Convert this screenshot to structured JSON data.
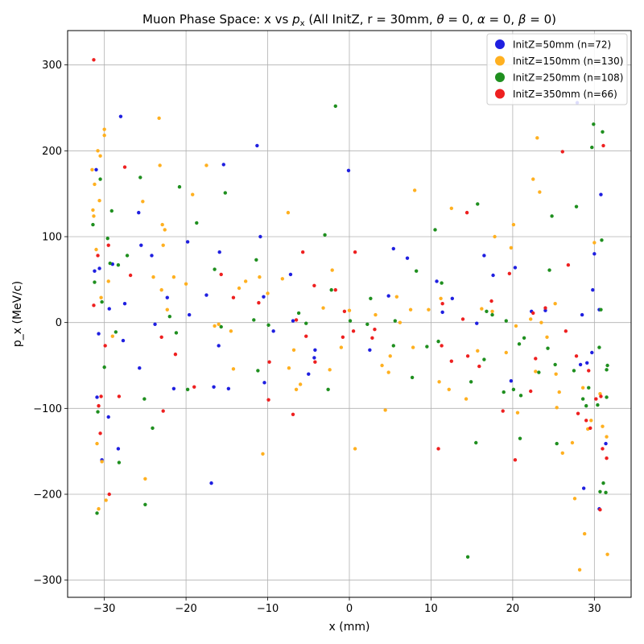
{
  "chart_data": {
    "type": "scatter",
    "title": "Muon Phase Space: x vs p_x (All InitZ, r = 30mm, θ = 0, α = 0, β = 0)",
    "xlabel": "x (mm)",
    "ylabel": "p_x (MeV/c)",
    "xlim": [
      -34.5,
      34.5
    ],
    "ylim": [
      -320,
      340
    ],
    "xticks": [
      -30,
      -20,
      -10,
      0,
      10,
      20,
      30
    ],
    "yticks": [
      -300,
      -200,
      -100,
      0,
      100,
      200,
      300
    ],
    "xtick_labels": [
      "−30",
      "−20",
      "−10",
      "0",
      "10",
      "20",
      "30"
    ],
    "ytick_labels": [
      "−300",
      "−200",
      "−100",
      "0",
      "100",
      "200",
      "300"
    ],
    "grid": true,
    "legend_position": "top-right",
    "series": [
      {
        "name": "InitZ=50mm (n=72)",
        "color": "#1f1fe0",
        "points": [
          [
            -31.2,
            60
          ],
          [
            -31.0,
            178
          ],
          [
            -30.9,
            -87
          ],
          [
            -30.7,
            -13
          ],
          [
            -30.6,
            63
          ],
          [
            -30.3,
            -160
          ],
          [
            -29.5,
            -110
          ],
          [
            -29.4,
            16
          ],
          [
            -29.0,
            68
          ],
          [
            -28.3,
            -147
          ],
          [
            -28.0,
            240
          ],
          [
            -27.7,
            -21
          ],
          [
            -27.5,
            22
          ],
          [
            -25.8,
            128
          ],
          [
            -25.7,
            -53
          ],
          [
            -25.5,
            90
          ],
          [
            -24.2,
            78
          ],
          [
            -23.8,
            -2
          ],
          [
            -22.3,
            29
          ],
          [
            -21.5,
            -77
          ],
          [
            -19.8,
            94
          ],
          [
            -19.6,
            9
          ],
          [
            -17.5,
            32
          ],
          [
            -16.9,
            -187
          ],
          [
            -16.6,
            -75
          ],
          [
            -16.0,
            -27
          ],
          [
            -15.9,
            82
          ],
          [
            -15.4,
            184
          ],
          [
            -14.8,
            -77
          ],
          [
            -11.3,
            206
          ],
          [
            -10.9,
            100
          ],
          [
            -10.5,
            30
          ],
          [
            -10.4,
            -70
          ],
          [
            -9.3,
            -10
          ],
          [
            -7.2,
            56
          ],
          [
            -6.9,
            2
          ],
          [
            -5.0,
            -60
          ],
          [
            -4.3,
            -41
          ],
          [
            -4.2,
            -32
          ],
          [
            -0.1,
            177
          ],
          [
            2.5,
            -32
          ],
          [
            4.8,
            31
          ],
          [
            5.4,
            86
          ],
          [
            7.1,
            75
          ],
          [
            10.7,
            48
          ],
          [
            11.4,
            12
          ],
          [
            12.6,
            28
          ],
          [
            15.6,
            -1
          ],
          [
            16.5,
            78
          ],
          [
            17.6,
            55
          ],
          [
            19.8,
            -68
          ],
          [
            20.3,
            64
          ],
          [
            22.3,
            13
          ],
          [
            24.0,
            14
          ],
          [
            28.3,
            -49
          ],
          [
            27.9,
            256
          ],
          [
            28.5,
            9
          ],
          [
            28.7,
            -193
          ],
          [
            29.1,
            -47
          ],
          [
            29.7,
            -35
          ],
          [
            29.8,
            38
          ],
          [
            30.0,
            80
          ],
          [
            30.6,
            15
          ],
          [
            30.8,
            149
          ],
          [
            31.4,
            -141
          ],
          [
            30.6,
            -217
          ]
        ]
      },
      {
        "name": "InitZ=150mm (n=130)",
        "color": "#ffb020",
        "points": [
          [
            -31.5,
            178
          ],
          [
            -31.4,
            131
          ],
          [
            -31.3,
            124
          ],
          [
            -31.2,
            161
          ],
          [
            -31.0,
            85
          ],
          [
            -30.9,
            -141
          ],
          [
            -30.8,
            200
          ],
          [
            -30.7,
            -217
          ],
          [
            -30.6,
            142
          ],
          [
            -30.5,
            194
          ],
          [
            -30.4,
            29
          ],
          [
            -30.3,
            -162
          ],
          [
            -30.0,
            225
          ],
          [
            -30.0,
            218
          ],
          [
            -29.8,
            -207
          ],
          [
            -29.5,
            48
          ],
          [
            -29.0,
            -16
          ],
          [
            -25.3,
            141
          ],
          [
            -25.0,
            -182
          ],
          [
            -24.0,
            53
          ],
          [
            -23.3,
            238
          ],
          [
            -23.2,
            183
          ],
          [
            -23.0,
            38
          ],
          [
            -22.9,
            114
          ],
          [
            -22.8,
            90
          ],
          [
            -22.6,
            108
          ],
          [
            -22.3,
            15
          ],
          [
            -21.5,
            53
          ],
          [
            -20.0,
            45
          ],
          [
            -19.2,
            149
          ],
          [
            -17.5,
            183
          ],
          [
            -16.5,
            -4
          ],
          [
            -16.0,
            -2
          ],
          [
            -14.5,
            -10
          ],
          [
            -14.2,
            -54
          ],
          [
            -13.5,
            40
          ],
          [
            -12.7,
            48
          ],
          [
            -11.0,
            53
          ],
          [
            -10.6,
            -153
          ],
          [
            -10.0,
            34
          ],
          [
            -8.2,
            51
          ],
          [
            -7.5,
            128
          ],
          [
            -7.4,
            -53
          ],
          [
            -6.8,
            -32
          ],
          [
            -6.5,
            -78
          ],
          [
            -6.0,
            -72
          ],
          [
            -3.2,
            17
          ],
          [
            -2.4,
            -55
          ],
          [
            -2.1,
            61
          ],
          [
            -1.0,
            -29
          ],
          [
            0.0,
            14
          ],
          [
            0.7,
            -147
          ],
          [
            3.2,
            9
          ],
          [
            4.0,
            -50
          ],
          [
            4.4,
            -102
          ],
          [
            4.8,
            -58
          ],
          [
            5.0,
            -39
          ],
          [
            5.8,
            30
          ],
          [
            6.2,
            0
          ],
          [
            7.5,
            15
          ],
          [
            7.8,
            -29
          ],
          [
            8.0,
            154
          ],
          [
            9.7,
            15
          ],
          [
            11.0,
            -69
          ],
          [
            11.2,
            28
          ],
          [
            12.2,
            -78
          ],
          [
            12.5,
            133
          ],
          [
            14.3,
            -89
          ],
          [
            15.7,
            -33
          ],
          [
            16.2,
            16
          ],
          [
            17.5,
            13
          ],
          [
            17.8,
            100
          ],
          [
            19.2,
            -35
          ],
          [
            19.8,
            87
          ],
          [
            20.1,
            114
          ],
          [
            20.4,
            -4
          ],
          [
            20.6,
            -105
          ],
          [
            22.2,
            4
          ],
          [
            22.5,
            167
          ],
          [
            22.8,
            -57
          ],
          [
            23.0,
            215
          ],
          [
            23.3,
            152
          ],
          [
            23.5,
            0
          ],
          [
            24.2,
            -17
          ],
          [
            25.2,
            22
          ],
          [
            25.3,
            -60
          ],
          [
            25.4,
            -99
          ],
          [
            25.7,
            -81
          ],
          [
            26.1,
            -152
          ],
          [
            27.3,
            -140
          ],
          [
            27.6,
            -205
          ],
          [
            28.2,
            -288
          ],
          [
            28.6,
            -76
          ],
          [
            28.8,
            -246
          ],
          [
            29.2,
            -124
          ],
          [
            29.6,
            -114
          ],
          [
            30.0,
            93
          ],
          [
            30.7,
            -83
          ],
          [
            31.0,
            -121
          ],
          [
            31.5,
            -133
          ],
          [
            31.6,
            -270
          ]
        ]
      },
      {
        "name": "InitZ=250mm (n=108)",
        "color": "#1f8f1f",
        "points": [
          [
            -31.4,
            114
          ],
          [
            -31.2,
            47
          ],
          [
            -30.9,
            -222
          ],
          [
            -30.8,
            -104
          ],
          [
            -30.5,
            167
          ],
          [
            -30.3,
            24
          ],
          [
            -30.0,
            -52
          ],
          [
            -29.6,
            98
          ],
          [
            -29.3,
            69
          ],
          [
            -29.1,
            130
          ],
          [
            -28.6,
            -11
          ],
          [
            -28.3,
            67
          ],
          [
            -28.2,
            -163
          ],
          [
            -27.2,
            78
          ],
          [
            -25.6,
            169
          ],
          [
            -25.1,
            -89
          ],
          [
            -25.0,
            -212
          ],
          [
            -24.1,
            -123
          ],
          [
            -22.0,
            7
          ],
          [
            -21.2,
            -12
          ],
          [
            -20.8,
            158
          ],
          [
            -19.8,
            -78
          ],
          [
            -18.7,
            116
          ],
          [
            -16.5,
            62
          ],
          [
            -15.7,
            -5
          ],
          [
            -15.2,
            151
          ],
          [
            -11.7,
            3
          ],
          [
            -11.4,
            73
          ],
          [
            -11.2,
            -56
          ],
          [
            -9.9,
            -3
          ],
          [
            -6.2,
            11
          ],
          [
            -5.3,
            -1
          ],
          [
            -3.0,
            102
          ],
          [
            -2.6,
            -78
          ],
          [
            -2.2,
            38
          ],
          [
            -1.7,
            252
          ],
          [
            0.1,
            2
          ],
          [
            2.2,
            -2
          ],
          [
            2.6,
            28
          ],
          [
            5.4,
            -27
          ],
          [
            5.6,
            2
          ],
          [
            7.7,
            -64
          ],
          [
            8.2,
            60
          ],
          [
            9.5,
            -28
          ],
          [
            10.5,
            108
          ],
          [
            10.9,
            -22
          ],
          [
            11.3,
            46
          ],
          [
            14.5,
            -273
          ],
          [
            14.9,
            -69
          ],
          [
            15.5,
            -140
          ],
          [
            15.7,
            138
          ],
          [
            16.5,
            -43
          ],
          [
            16.8,
            13
          ],
          [
            17.5,
            9
          ],
          [
            18.9,
            -81
          ],
          [
            19.2,
            2
          ],
          [
            20.1,
            -78
          ],
          [
            20.8,
            -25
          ],
          [
            20.9,
            -135
          ],
          [
            21.0,
            -85
          ],
          [
            21.4,
            -18
          ],
          [
            23.2,
            -58
          ],
          [
            24.3,
            -30
          ],
          [
            24.5,
            61
          ],
          [
            24.8,
            124
          ],
          [
            25.2,
            -49
          ],
          [
            25.4,
            -141
          ],
          [
            27.5,
            -56
          ],
          [
            27.8,
            135
          ],
          [
            28.6,
            -89
          ],
          [
            29.0,
            -97
          ],
          [
            29.3,
            -76
          ],
          [
            29.7,
            204
          ],
          [
            29.9,
            231
          ],
          [
            30.4,
            -96
          ],
          [
            30.6,
            -29
          ],
          [
            30.7,
            -197
          ],
          [
            30.8,
            15
          ],
          [
            30.9,
            96
          ],
          [
            31.0,
            222
          ],
          [
            31.1,
            -187
          ],
          [
            31.4,
            -198
          ],
          [
            31.5,
            -55
          ],
          [
            31.6,
            -50
          ],
          [
            31.5,
            -87
          ]
        ]
      },
      {
        "name": "InitZ=350mm (n=66)",
        "color": "#ee2020",
        "points": [
          [
            -31.3,
            306
          ],
          [
            -31.3,
            20
          ],
          [
            -30.8,
            78
          ],
          [
            -30.7,
            -97
          ],
          [
            -30.5,
            -129
          ],
          [
            -30.4,
            -86
          ],
          [
            -29.9,
            -27
          ],
          [
            -29.5,
            90
          ],
          [
            -29.4,
            -200
          ],
          [
            -28.2,
            -86
          ],
          [
            -27.5,
            181
          ],
          [
            -26.8,
            55
          ],
          [
            -23.0,
            -17
          ],
          [
            -22.8,
            -103
          ],
          [
            -21.3,
            -37
          ],
          [
            -19.0,
            -75
          ],
          [
            -15.7,
            56
          ],
          [
            -14.2,
            29
          ],
          [
            -11.1,
            23
          ],
          [
            -9.8,
            -46
          ],
          [
            -9.9,
            -90
          ],
          [
            -6.9,
            -107
          ],
          [
            -6.5,
            3
          ],
          [
            -5.7,
            82
          ],
          [
            -5.3,
            -16
          ],
          [
            -4.3,
            43
          ],
          [
            -4.2,
            -46
          ],
          [
            -1.7,
            38
          ],
          [
            -0.8,
            -17
          ],
          [
            -0.6,
            13
          ],
          [
            0.5,
            -10
          ],
          [
            0.7,
            82
          ],
          [
            2.8,
            -18
          ],
          [
            3.1,
            -8
          ],
          [
            10.9,
            -147
          ],
          [
            11.3,
            -27
          ],
          [
            11.4,
            22
          ],
          [
            12.5,
            -45
          ],
          [
            13.9,
            4
          ],
          [
            14.5,
            -39
          ],
          [
            14.4,
            128
          ],
          [
            15.9,
            -51
          ],
          [
            17.4,
            25
          ],
          [
            18.8,
            -103
          ],
          [
            19.6,
            57
          ],
          [
            20.3,
            -160
          ],
          [
            22.2,
            -80
          ],
          [
            22.5,
            11
          ],
          [
            22.8,
            -42
          ],
          [
            24.0,
            17
          ],
          [
            26.1,
            199
          ],
          [
            26.5,
            -10
          ],
          [
            26.8,
            67
          ],
          [
            27.8,
            -39
          ],
          [
            28.0,
            -106
          ],
          [
            29.0,
            -114
          ],
          [
            29.3,
            -56
          ],
          [
            29.5,
            -123
          ],
          [
            30.2,
            -89
          ],
          [
            30.7,
            -218
          ],
          [
            30.8,
            -86
          ],
          [
            31.0,
            -147
          ],
          [
            31.1,
            206
          ],
          [
            31.5,
            -158
          ]
        ]
      }
    ]
  }
}
